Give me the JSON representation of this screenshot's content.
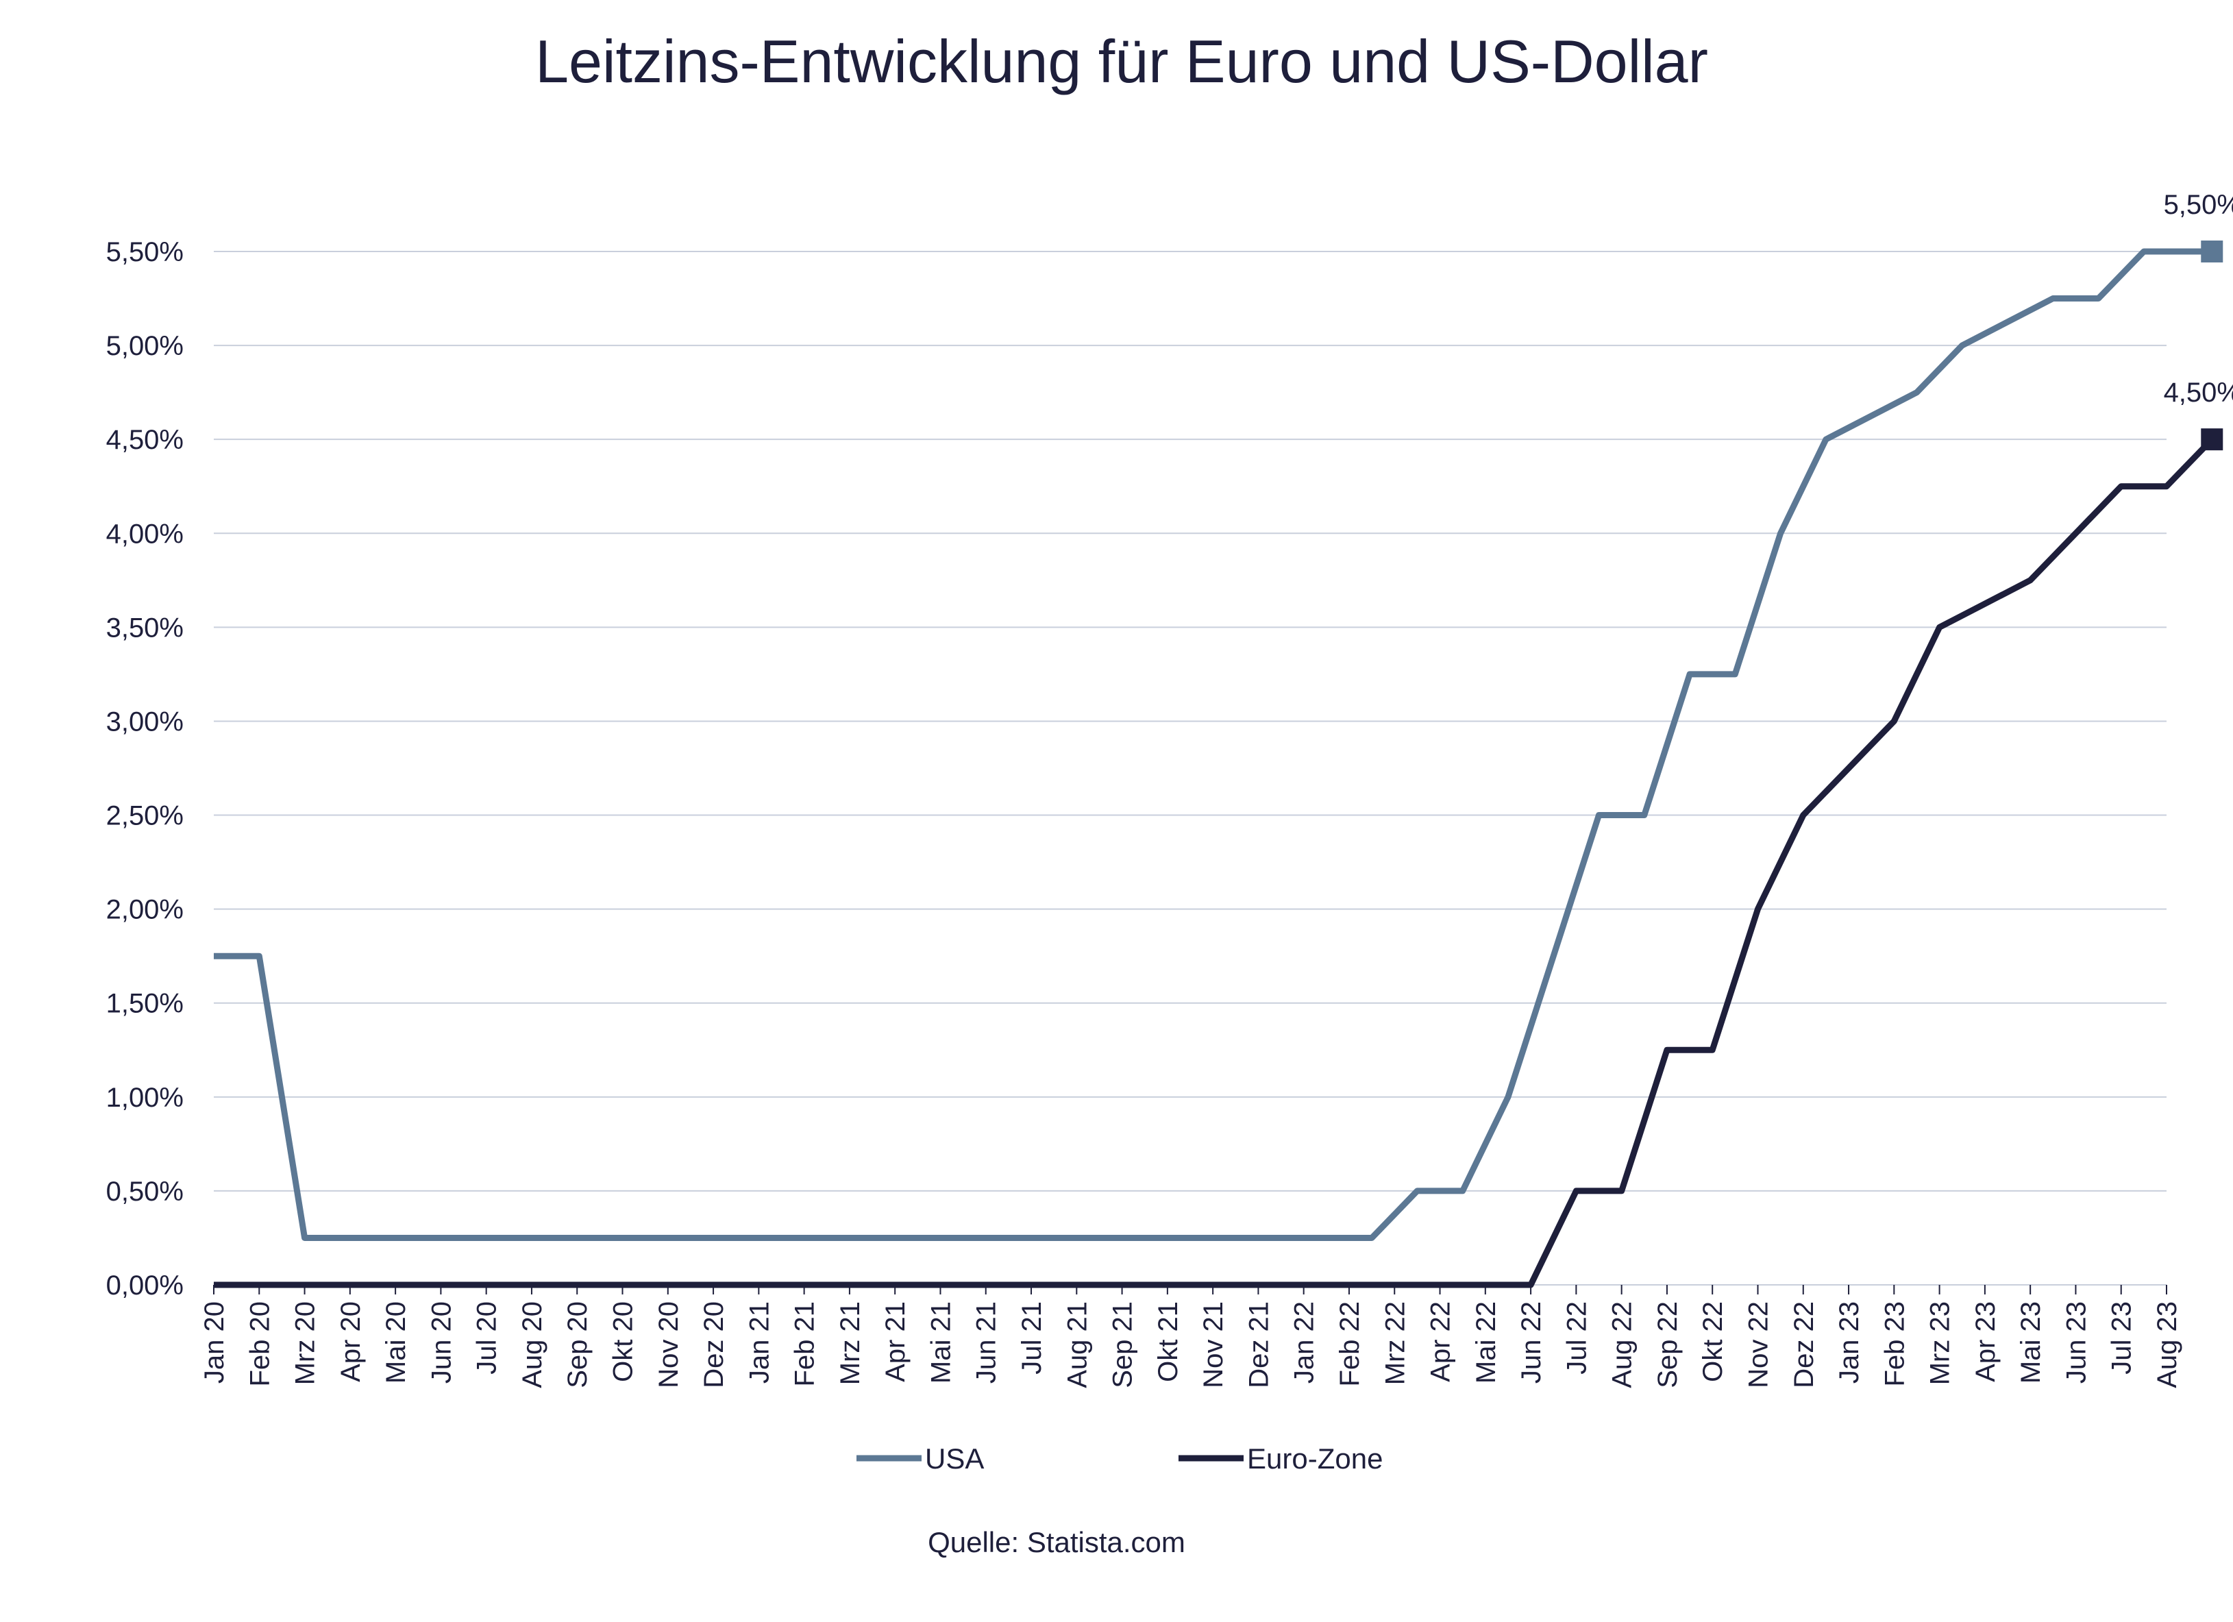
{
  "chart_data": {
    "type": "line",
    "title": "Leitzins-Entwicklung für Euro und US-Dollar",
    "source": "Quelle: Statista.com",
    "xlabel": "",
    "ylabel": "",
    "ylim": [
      0,
      5.5
    ],
    "y_ticks": [
      "0,00%",
      "0,50%",
      "1,00%",
      "1,50%",
      "2,00%",
      "2,50%",
      "3,00%",
      "3,50%",
      "4,00%",
      "4,50%",
      "5,00%",
      "5,50%"
    ],
    "categories": [
      "Jan 20",
      "Feb 20",
      "Mrz 20",
      "Apr 20",
      "Mai 20",
      "Jun 20",
      "Jul 20",
      "Aug 20",
      "Sep 20",
      "Okt 20",
      "Nov 20",
      "Dez 20",
      "Jan 21",
      "Feb 21",
      "Mrz 21",
      "Apr 21",
      "Mai 21",
      "Jun 21",
      "Jul 21",
      "Aug 21",
      "Sep 21",
      "Okt 21",
      "Nov 21",
      "Dez 21",
      "Jan 22",
      "Feb 22",
      "Mrz 22",
      "Apr 22",
      "Mai 22",
      "Jun 22",
      "Jul 22",
      "Aug 22",
      "Sep 22",
      "Okt 22",
      "Nov 22",
      "Dez 22",
      "Jan 23",
      "Feb 23",
      "Mrz 23",
      "Apr 23",
      "Mai 23",
      "Jun 23",
      "Jul 23",
      "Aug 23"
    ],
    "series": [
      {
        "name": "USA",
        "color": "#5c7894",
        "end_label": "5,50%",
        "points": [
          [
            0,
            1.75
          ],
          [
            1,
            1.75
          ],
          [
            2,
            0.25
          ],
          [
            25.5,
            0.25
          ],
          [
            26.5,
            0.5
          ],
          [
            27.5,
            0.5
          ],
          [
            28.5,
            1.0
          ],
          [
            29.5,
            1.75
          ],
          [
            30.5,
            2.5
          ],
          [
            31.5,
            2.5
          ],
          [
            32.5,
            3.25
          ],
          [
            33.5,
            3.25
          ],
          [
            34.5,
            4.0
          ],
          [
            35.5,
            4.5
          ],
          [
            37.5,
            4.75
          ],
          [
            38.5,
            5.0
          ],
          [
            40.5,
            5.25
          ],
          [
            41.5,
            5.25
          ],
          [
            42.5,
            5.5
          ],
          [
            44,
            5.5
          ]
        ]
      },
      {
        "name": "Euro-Zone",
        "color": "#1e1f3b",
        "end_label": "4,50%",
        "points": [
          [
            0,
            0
          ],
          [
            29,
            0
          ],
          [
            30,
            0.5
          ],
          [
            31,
            0.5
          ],
          [
            32,
            1.25
          ],
          [
            33,
            1.25
          ],
          [
            34,
            2.0
          ],
          [
            35,
            2.5
          ],
          [
            37,
            3.0
          ],
          [
            38,
            3.5
          ],
          [
            40,
            3.75
          ],
          [
            42,
            4.25
          ],
          [
            43,
            4.25
          ],
          [
            44,
            4.5
          ]
        ]
      }
    ],
    "legend": {
      "position": "bottom",
      "entries": [
        "USA",
        "Euro-Zone"
      ]
    },
    "grid": true
  }
}
